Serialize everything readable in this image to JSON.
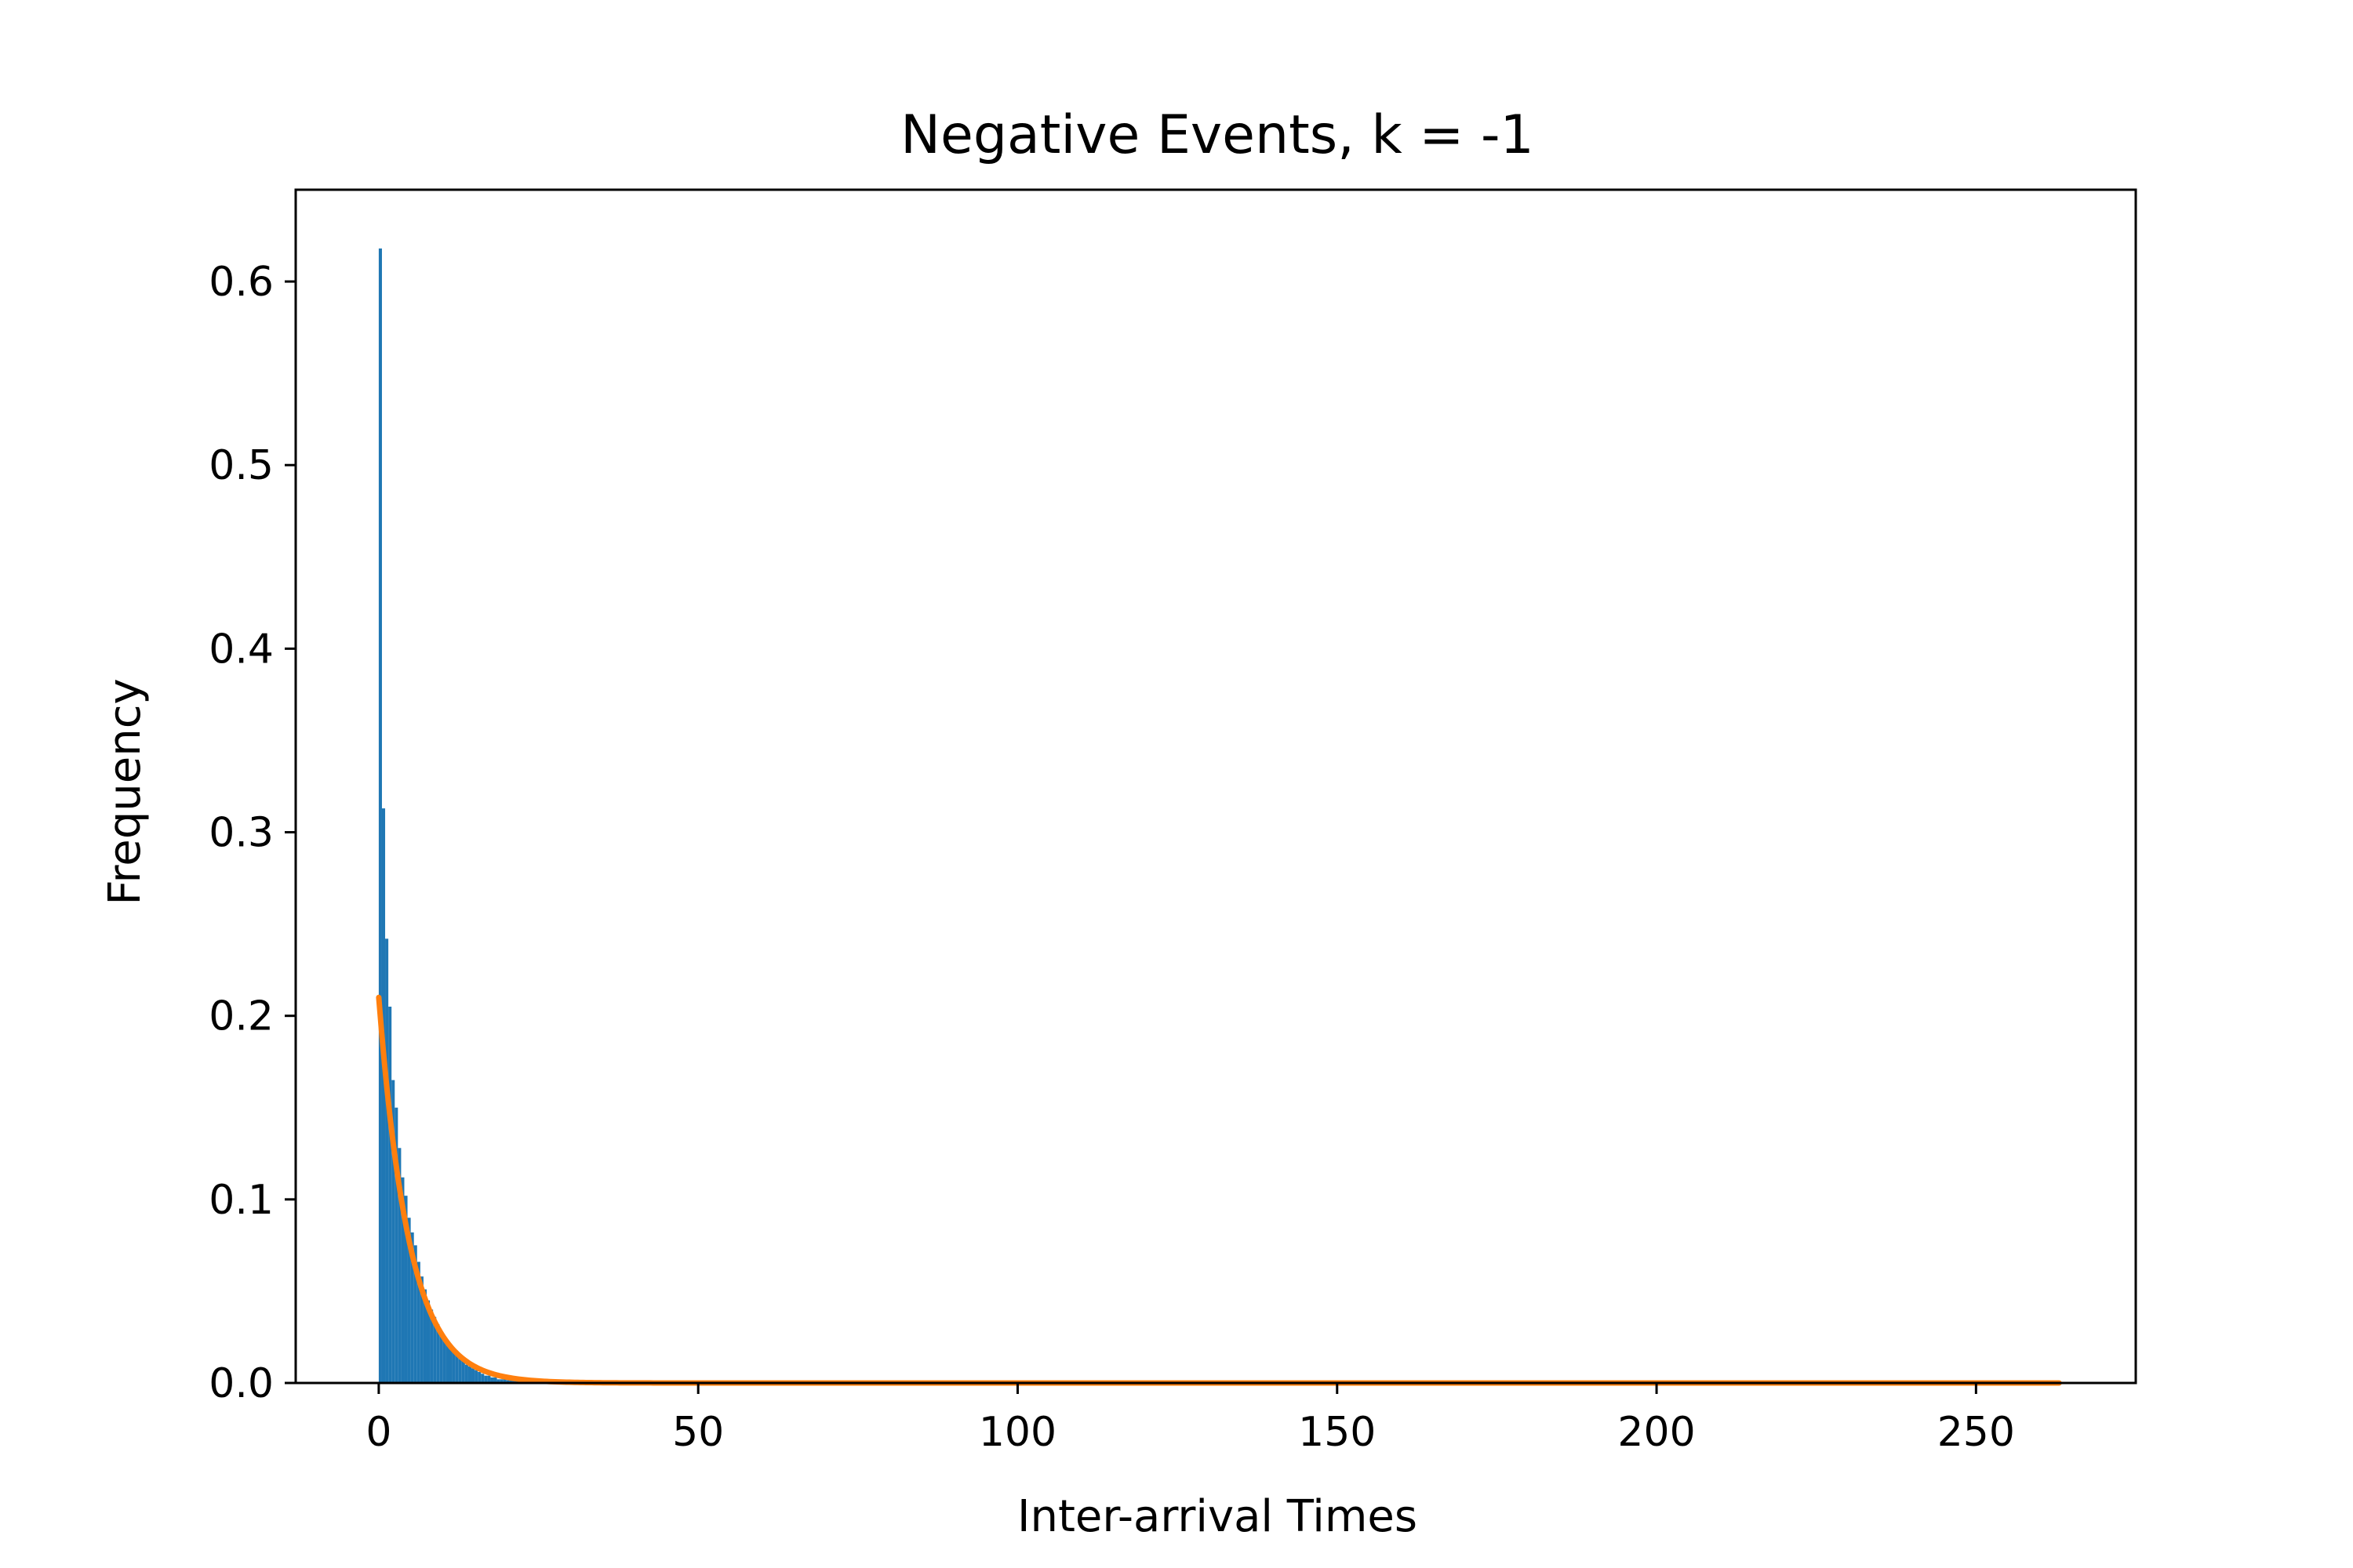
{
  "chart_data": {
    "type": "bar",
    "title": "Negative Events, k = -1",
    "xlabel": "Inter-arrival Times",
    "ylabel": "Frequency",
    "xlim": [
      -13,
      275
    ],
    "ylim": [
      0,
      0.65
    ],
    "xticks": [
      0,
      50,
      100,
      150,
      200,
      250
    ],
    "yticks": [
      0.0,
      0.1,
      0.2,
      0.3,
      0.4,
      0.5,
      0.6
    ],
    "grid": false,
    "legend": "none",
    "histogram": {
      "name": "",
      "bin_width": 0.5,
      "bin_starts": [
        0.0,
        0.5,
        1.0,
        1.5,
        2.0,
        2.5,
        3.0,
        3.5,
        4.0,
        4.5,
        5.0,
        5.5,
        6.0,
        6.5,
        7.0,
        7.5,
        8.0,
        8.5,
        9.0,
        9.5,
        10.0,
        10.5,
        11.0,
        11.5,
        12.0,
        12.5,
        13.0,
        13.5,
        14.0,
        14.5,
        15.0,
        15.5,
        16.0,
        16.5,
        17.0,
        17.5,
        18.0,
        18.5,
        19.0,
        19.5,
        20.0,
        20.5,
        21.0,
        21.5,
        22.0,
        22.5,
        23.0,
        23.5,
        24.0,
        24.5,
        25.0,
        25.5,
        26.0,
        26.5,
        27.0,
        27.5,
        28.0,
        28.5,
        29.0,
        29.5
      ],
      "frequencies": [
        0.618,
        0.313,
        0.242,
        0.205,
        0.165,
        0.15,
        0.128,
        0.112,
        0.102,
        0.09,
        0.082,
        0.075,
        0.066,
        0.058,
        0.051,
        0.045,
        0.04,
        0.036,
        0.032,
        0.028,
        0.025,
        0.022,
        0.019,
        0.017,
        0.015,
        0.013,
        0.012,
        0.01,
        0.009,
        0.008,
        0.007,
        0.006,
        0.005,
        0.004,
        0.004,
        0.003,
        0.003,
        0.002,
        0.002,
        0.002,
        0.0015,
        0.0013,
        0.0011,
        0.001,
        0.0009,
        0.0008,
        0.0007,
        0.0006,
        0.0005,
        0.0005,
        0.0004,
        0.0004,
        0.0003,
        0.0003,
        0.0002,
        0.0002,
        0.0002,
        0.0001,
        0.0001,
        0.0001
      ]
    },
    "fit_curve": {
      "name": "",
      "function": "exponential",
      "x_range": [
        0,
        263
      ],
      "amplitude": 0.21,
      "rate": 0.21
    },
    "colors": {
      "bars": "#1f77b4",
      "curve": "#ff7f0e",
      "axes": "#000000"
    }
  }
}
